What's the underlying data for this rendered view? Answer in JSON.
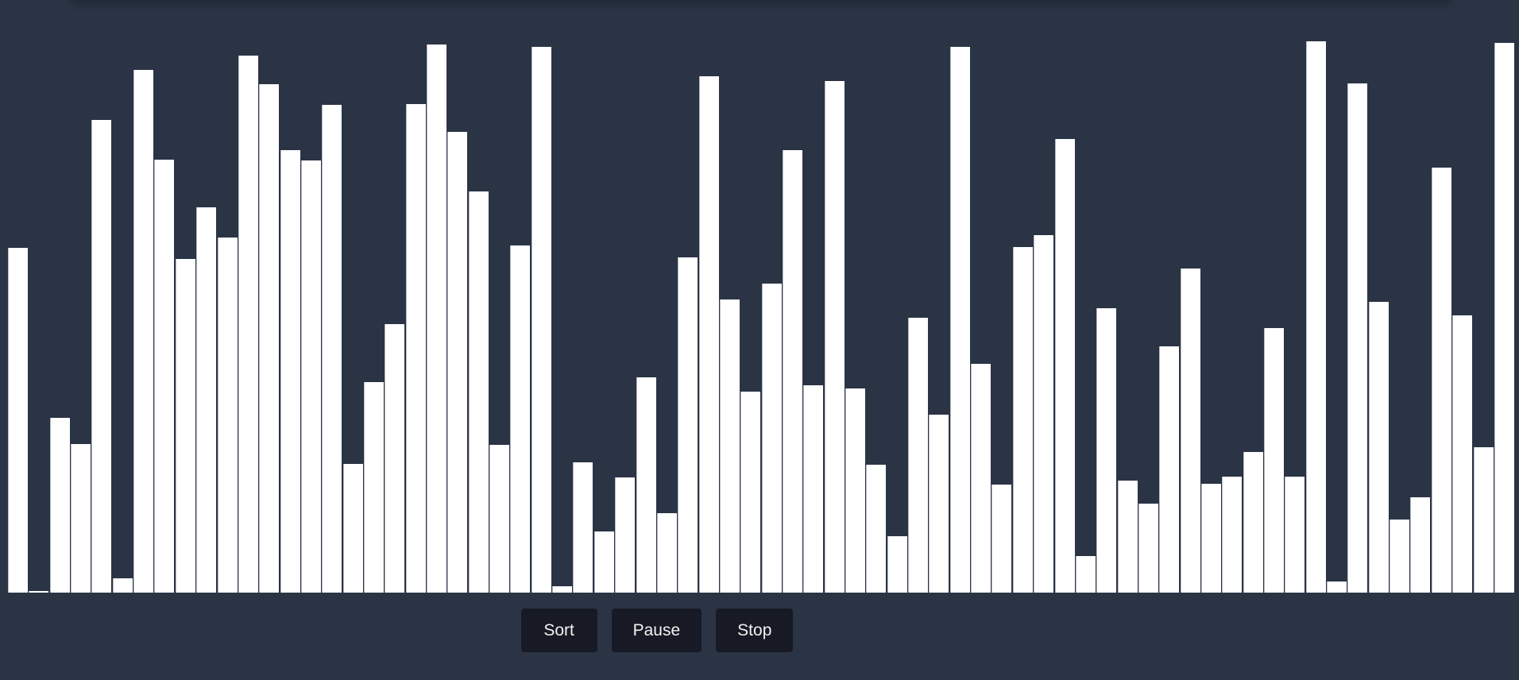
{
  "visualizer": {
    "bar_values": [
      430,
      2,
      218,
      185,
      590,
      18,
      652,
      540,
      416,
      481,
      443,
      670,
      634,
      552,
      539,
      609,
      161,
      263,
      335,
      610,
      684,
      575,
      501,
      184,
      433,
      681,
      8,
      163,
      76,
      144,
      269,
      99,
      418,
      644,
      366,
      251,
      386,
      552,
      259,
      638,
      255,
      160,
      70,
      343,
      222,
      681,
      286,
      135,
      431,
      446,
      566,
      46,
      355,
      140,
      111,
      307,
      404,
      136,
      145,
      175,
      330,
      145,
      688,
      14,
      635,
      363,
      91,
      119,
      530,
      346,
      181,
      686
    ],
    "max_value": 690,
    "bar_color": "#ffffff",
    "background_color": "#2b3445"
  },
  "controls": {
    "sort_label": "Sort",
    "pause_label": "Pause",
    "stop_label": "Stop"
  }
}
